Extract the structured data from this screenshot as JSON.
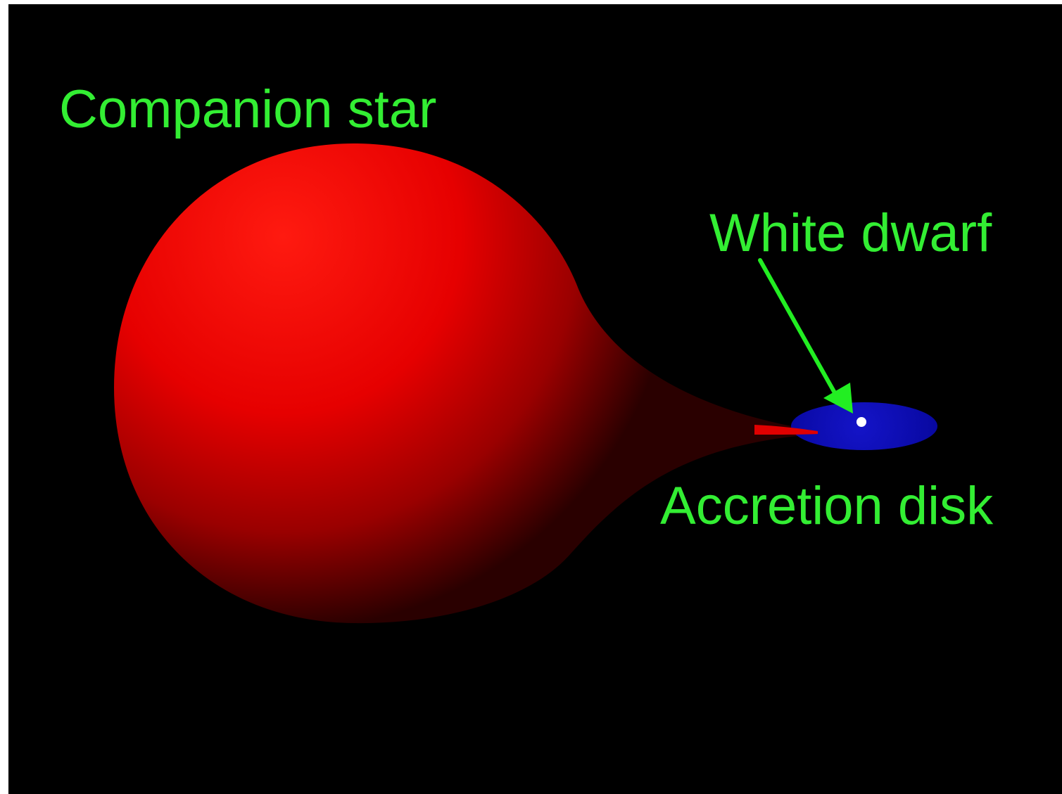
{
  "colors": {
    "background": "#000000",
    "label": "#33ee33",
    "arrow": "#22ee22",
    "companion_star": "#ff0000",
    "accretion_disk": "#0a0ab0",
    "white_dwarf": "#ffffff"
  },
  "labels": {
    "companion_star": "Companion star",
    "white_dwarf": "White dwarf",
    "accretion_disk": "Accretion disk"
  }
}
